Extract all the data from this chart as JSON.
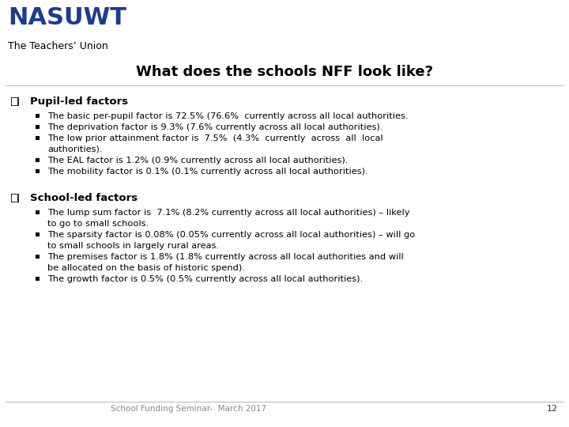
{
  "title": "What does the schools NFF look like?",
  "nasuwt_text": "NASUWT",
  "nasuwt_subtitle": "The Teachers’ Union",
  "nasuwt_color": "#1f3c8c",
  "background_color": "#ffffff",
  "title_fontsize": 13,
  "section1_header": "Pupil-led factors",
  "section1_bullets": [
    "The basic per-pupil factor is 72.5% (76.6%  currently across all local authorities.",
    "The deprivation factor is 9.3% (7.6% currently across all local authorities).",
    "The low prior attainment factor is  7.5%  (4.3%  currently  across  all  local\nauthorities).",
    "The EAL factor is 1.2% (0.9% currently across all local authorities).",
    "The mobility factor is 0.1% (0.1% currently across all local authorities)."
  ],
  "section2_header": "School-led factors",
  "section2_bullets": [
    "The lump sum factor is  7.1% (8.2% currently across all local authorities) – likely\nto go to small schools.",
    "The sparsity factor is 0.08% (0.05% currently across all local authorities) – will go\nto small schools in largely rural areas.",
    "The premises factor is 1.8% (1.8% currently across all local authorities and will\nbe allocated on the basis of historic spend).",
    "The growth factor is 0.5% (0.5% currently across all local authorities)."
  ],
  "footer_text": "School Funding Seminar-  March 2017",
  "footer_page": "12",
  "text_color": "#000000",
  "header_fontsize": 9.5,
  "bullet_fontsize": 8.2,
  "nasuwt_fontsize": 22,
  "subtitle_fontsize": 9
}
